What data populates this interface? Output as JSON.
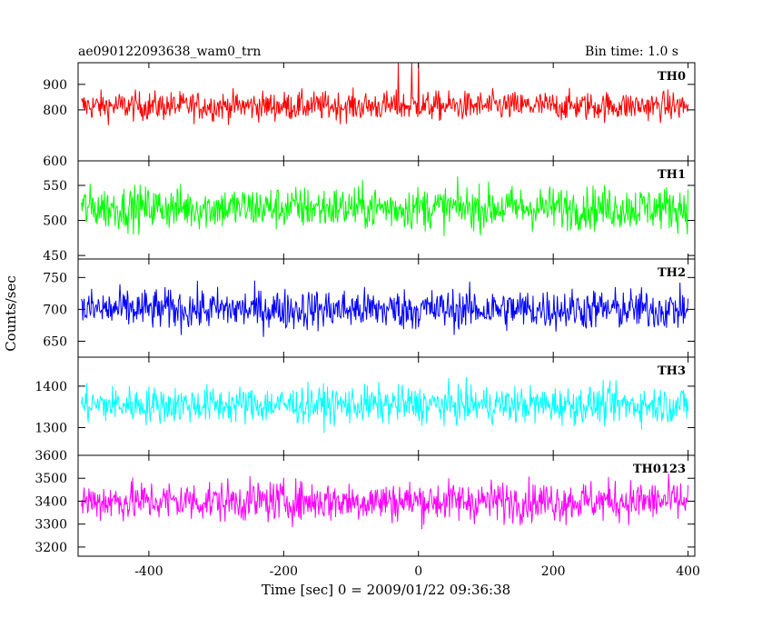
{
  "header": {
    "title": "ae090122093638_wam0_trn",
    "bin_time": "Bin time: 1.0 s"
  },
  "chart_data": {
    "type": "line",
    "xlabel": "Time [sec] 0 = 2009/01/22 09:36:38",
    "ylabel": "Counts/sec",
    "xlim": [
      -505,
      410
    ],
    "x_range": [
      -500,
      400
    ],
    "x_step": 1,
    "x_ticks": [
      -400,
      -200,
      0,
      200,
      400
    ],
    "grid": false,
    "panels": [
      {
        "name": "TH0",
        "color": "#ff0000",
        "ylim": [
          600,
          985
        ],
        "y_ticks": [
          600,
          800,
          900
        ],
        "mean": 815,
        "noise": 48,
        "spikes": [
          {
            "x": -30,
            "value": 985
          },
          {
            "x": -10,
            "value": 985
          },
          {
            "x": 0,
            "value": 985
          }
        ]
      },
      {
        "name": "TH1",
        "color": "#00ff00",
        "ylim": [
          445,
          585
        ],
        "y_ticks": [
          450,
          500,
          550
        ],
        "mean": 518,
        "noise": 26,
        "spikes": []
      },
      {
        "name": "TH2",
        "color": "#0000ff",
        "ylim": [
          625,
          779
        ],
        "y_ticks": [
          650,
          700,
          750
        ],
        "mean": 700,
        "noise": 27,
        "spikes": []
      },
      {
        "name": "TH3",
        "color": "#00ffff",
        "ylim": [
          1233,
          1470
        ],
        "y_ticks": [
          1300,
          1400
        ],
        "mean": 1355,
        "noise": 38,
        "spikes": []
      },
      {
        "name": "TH0123",
        "color": "#ff00ff",
        "ylim": [
          3160,
          3600
        ],
        "y_ticks": [
          3200,
          3300,
          3400,
          3500,
          3600
        ],
        "mean": 3400,
        "noise": 75,
        "spikes": []
      }
    ]
  }
}
